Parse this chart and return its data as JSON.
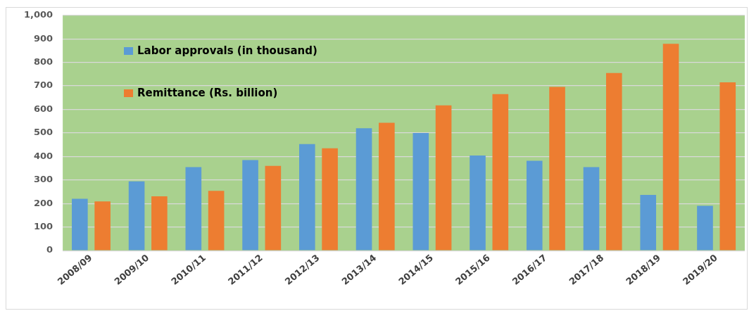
{
  "chart_data": {
    "type": "bar",
    "categories": [
      "2008/09",
      "2009/10",
      "2010/11",
      "2011/12",
      "2012/13",
      "2013/14",
      "2014/15",
      "2015/16",
      "2016/17",
      "2017/18",
      "2018/19",
      "2019/20"
    ],
    "series": [
      {
        "name": "Labor approvals (in thousand)",
        "color": "#5b9bd5",
        "values": [
          220,
          294,
          355,
          385,
          453,
          520,
          500,
          404,
          382,
          355,
          237,
          190
        ]
      },
      {
        "name": "Remittance (Rs. billion)",
        "color": "#ed7d31",
        "values": [
          209,
          231,
          254,
          360,
          435,
          543,
          617,
          665,
          696,
          755,
          879,
          715
        ]
      }
    ],
    "ylim": [
      0,
      1000
    ],
    "yticks": [
      0,
      100,
      200,
      300,
      400,
      500,
      600,
      700,
      800,
      900,
      {
        "value": 1000,
        "label": "1,000"
      }
    ],
    "grid": "y",
    "legend": "top left"
  }
}
